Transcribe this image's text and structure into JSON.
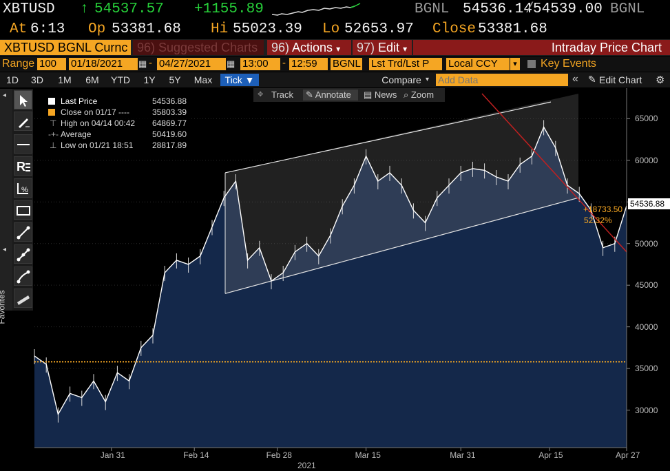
{
  "quote": {
    "ticker": "XBTUSD",
    "up_arrow": "↑",
    "last": "54537.57",
    "change": "+1155.89",
    "source1": "BGNL",
    "bid": "54536.14",
    "slash": "/",
    "ask": "54539.00",
    "source2": "BGNL",
    "at_label": "At",
    "time": "6:13",
    "op_label": "Op",
    "open": "53381.68",
    "hi_label": "Hi",
    "high": "55023.39",
    "lo_label": "Lo",
    "low": "52653.97",
    "close_label": "Close",
    "close": "53381.68"
  },
  "tabs": {
    "security": "XBTUSD BGNL Curnc",
    "suggested_num": "96)",
    "suggested": "Suggested Charts",
    "actions_num": "96)",
    "actions": "Actions",
    "edit_num": "97)",
    "edit": "Edit",
    "title": "Intraday Price Chart"
  },
  "range": {
    "label": "Range",
    "interval": "100",
    "start": "01/18/2021",
    "dash": "-",
    "end": "04/27/2021",
    "t_start": "13:00",
    "t_end": "12:59",
    "source": "BGNL",
    "field": "Lst Trd/Lst P",
    "ccy": "Local CCY",
    "events": "Key Events"
  },
  "periods": {
    "items": [
      "1D",
      "3D",
      "1M",
      "6M",
      "YTD",
      "1Y",
      "5Y",
      "Max"
    ],
    "active": "Tick ▼",
    "compare": "Compare",
    "add_data_placeholder": "Add Data",
    "edit_chart": "Edit Chart"
  },
  "chart_tools": {
    "track": "Track",
    "annotate": "Annotate",
    "news": "News",
    "zoom": "Zoom"
  },
  "toolbox": {
    "favorites": "Favorites"
  },
  "legend": {
    "rows": [
      {
        "label": "Last Price",
        "value": "54536.88"
      },
      {
        "label": "Close on 01/17 ----",
        "value": "35803.39"
      },
      {
        "label": "High on 04/14 00:42",
        "value": "64869.77"
      },
      {
        "label": "Average",
        "value": "50419.60"
      },
      {
        "label": "Low on 01/21 18:51",
        "value": "28817.89"
      }
    ]
  },
  "annotations": {
    "last_price_tag": "54536.88",
    "change_abs": "+18733.50",
    "change_pct": "52.32%"
  },
  "colors": {
    "accent": "#f5a623",
    "up": "#27d13a",
    "active_tab": "#1d5fb8",
    "area_fill": "#14284a",
    "trend_line": "#c02020",
    "prev_close_line": "#f5a623"
  },
  "chart_data": {
    "type": "line",
    "title": "",
    "xlabel": "2021",
    "ylabel": "",
    "ylim": [
      25500,
      68500
    ],
    "y_ticks": [
      30000,
      35000,
      40000,
      45000,
      50000,
      55000,
      60000,
      65000
    ],
    "y_tick_labels": [
      "30000",
      "35000",
      "40000",
      "45000",
      "50000",
      "",
      "60000",
      "65000"
    ],
    "x_ticks": [
      "Jan 31",
      "Feb 14",
      "Feb 28",
      "Mar 15",
      "Mar 31",
      "Apr 15",
      "Apr 27"
    ],
    "x_year": "2021",
    "prev_close": 35803.39,
    "series": [
      {
        "x": [
          "01/18",
          "01/20",
          "01/22",
          "01/24",
          "01/26",
          "01/28",
          "01/30",
          "02/01",
          "02/03",
          "02/05",
          "02/07",
          "02/09",
          "02/11",
          "02/13",
          "02/15",
          "02/17",
          "02/19",
          "02/21",
          "02/23",
          "02/25",
          "02/27",
          "03/01",
          "03/03",
          "03/05",
          "03/07",
          "03/09",
          "03/11",
          "03/13",
          "03/15",
          "03/17",
          "03/19",
          "03/21",
          "03/23",
          "03/25",
          "03/27",
          "03/29",
          "03/31",
          "04/02",
          "04/04",
          "04/06",
          "04/08",
          "04/10",
          "04/12",
          "04/14",
          "04/16",
          "04/18",
          "04/20",
          "04/22",
          "04/24",
          "04/26",
          "04/27"
        ],
        "values": [
          36500,
          35500,
          29500,
          32000,
          31500,
          33500,
          31000,
          34500,
          33500,
          37500,
          39000,
          46500,
          48000,
          47500,
          48500,
          52000,
          55500,
          57500,
          48000,
          49500,
          45500,
          46500,
          49000,
          50000,
          48500,
          51000,
          54500,
          57000,
          60500,
          57500,
          58500,
          57000,
          54000,
          52500,
          55500,
          57000,
          58500,
          59000,
          58800,
          58000,
          57500,
          59500,
          60500,
          64000,
          61500,
          57000,
          56000,
          54000,
          49500,
          50000,
          54537
        ]
      }
    ],
    "channel_note": "upward channel drawn between two parallel trendlines",
    "legend_position": "top-left"
  }
}
